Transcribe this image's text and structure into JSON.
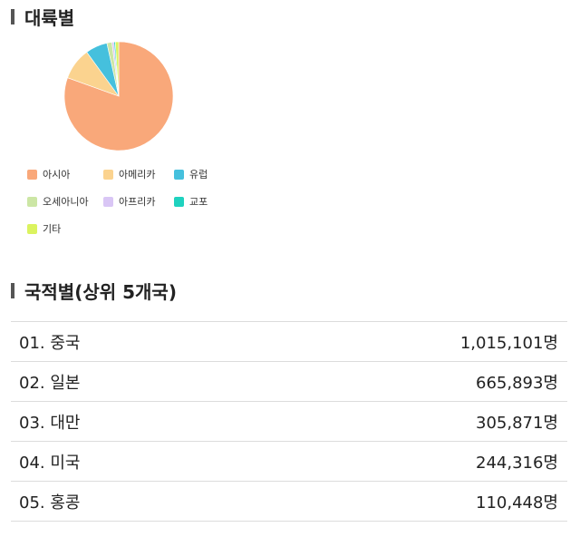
{
  "section1": {
    "title": "대륙별"
  },
  "section2": {
    "title": "국적별(상위 5개국)"
  },
  "chart_data": {
    "type": "pie",
    "title": "대륙별",
    "legend_position": "bottom",
    "categories": [
      "아시아",
      "아메리카",
      "유럽",
      "오세아니아",
      "아프리카",
      "교포",
      "기타"
    ],
    "values": [
      80.5,
      9.5,
      6.5,
      1.5,
      0.6,
      0.4,
      1.0
    ],
    "colors": [
      "#f9a87a",
      "#fbd38f",
      "#45c0dd",
      "#cce6a5",
      "#d9c6f5",
      "#1fd2bf",
      "#dbf35f"
    ]
  },
  "ranking": [
    {
      "name": "01. 중국",
      "value": "1,015,101명"
    },
    {
      "name": "02. 일본",
      "value": "665,893명"
    },
    {
      "name": "03. 대만",
      "value": "305,871명"
    },
    {
      "name": "04. 미국",
      "value": "244,316명"
    },
    {
      "name": "05. 홍콩",
      "value": "110,448명"
    }
  ]
}
